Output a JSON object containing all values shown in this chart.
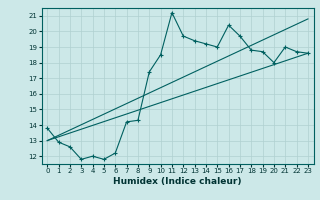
{
  "xlabel": "Humidex (Indice chaleur)",
  "background_color": "#cce8e8",
  "grid_color": "#b0d0d0",
  "line_color": "#006060",
  "xlim": [
    -0.5,
    23.5
  ],
  "ylim": [
    11.5,
    21.5
  ],
  "xticks": [
    0,
    1,
    2,
    3,
    4,
    5,
    6,
    7,
    8,
    9,
    10,
    11,
    12,
    13,
    14,
    15,
    16,
    17,
    18,
    19,
    20,
    21,
    22,
    23
  ],
  "yticks": [
    12,
    13,
    14,
    15,
    16,
    17,
    18,
    19,
    20,
    21
  ],
  "line1_x": [
    0,
    1,
    2,
    3,
    4,
    5,
    6,
    7,
    8,
    9,
    10,
    11,
    12,
    13,
    14,
    15,
    16,
    17,
    18,
    19,
    20,
    21,
    22,
    23
  ],
  "line1_y": [
    13.8,
    12.9,
    12.6,
    11.8,
    12.0,
    11.8,
    12.2,
    14.2,
    14.3,
    17.4,
    18.5,
    21.2,
    19.7,
    19.4,
    19.2,
    19.0,
    20.4,
    19.7,
    18.8,
    18.7,
    18.0,
    19.0,
    18.7,
    18.6
  ],
  "line2_x": [
    0,
    23
  ],
  "line2_y": [
    13.0,
    20.8
  ],
  "line3_x": [
    0,
    23
  ],
  "line3_y": [
    13.0,
    18.6
  ],
  "xlabel_fontsize": 6.5,
  "tick_fontsize": 5.0
}
